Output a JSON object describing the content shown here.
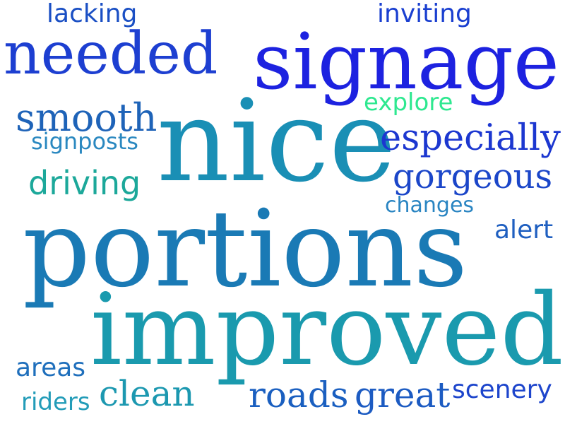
{
  "words": [
    {
      "key": "lacking",
      "text": "lacking",
      "color": "#1a4fc4"
    },
    {
      "key": "inviting",
      "text": "inviting",
      "color": "#1a3fd0"
    },
    {
      "key": "needed",
      "text": "needed",
      "color": "#1d3fd1"
    },
    {
      "key": "signage",
      "text": "signage",
      "color": "#1d22e0"
    },
    {
      "key": "explore",
      "text": "explore",
      "color": "#2ee890"
    },
    {
      "key": "smooth",
      "text": "smooth",
      "color": "#1e63b8"
    },
    {
      "key": "signposts",
      "text": "signposts",
      "color": "#2a88c0"
    },
    {
      "key": "nice",
      "text": "nice",
      "color": "#1a8fb5"
    },
    {
      "key": "especially",
      "text": "especially",
      "color": "#1c37d0"
    },
    {
      "key": "gorgeous",
      "text": "gorgeous",
      "color": "#1b46c9"
    },
    {
      "key": "driving",
      "text": "driving",
      "color": "#1ca89a"
    },
    {
      "key": "changes",
      "text": "changes",
      "color": "#2a85c2"
    },
    {
      "key": "portions",
      "text": "portions",
      "color": "#1a7ab5"
    },
    {
      "key": "alert",
      "text": "alert",
      "color": "#1f5fc0"
    },
    {
      "key": "improved",
      "text": "improved",
      "color": "#1a9aae"
    },
    {
      "key": "areas",
      "text": "areas",
      "color": "#1f6fbc"
    },
    {
      "key": "riders",
      "text": "riders",
      "color": "#239cb8"
    },
    {
      "key": "clean",
      "text": "clean",
      "color": "#1c98b0"
    },
    {
      "key": "roads",
      "text": "roads",
      "color": "#1a5fc0"
    },
    {
      "key": "great",
      "text": "great",
      "color": "#1c5bc2"
    },
    {
      "key": "scenery",
      "text": "scenery",
      "color": "#1d45cc"
    }
  ]
}
